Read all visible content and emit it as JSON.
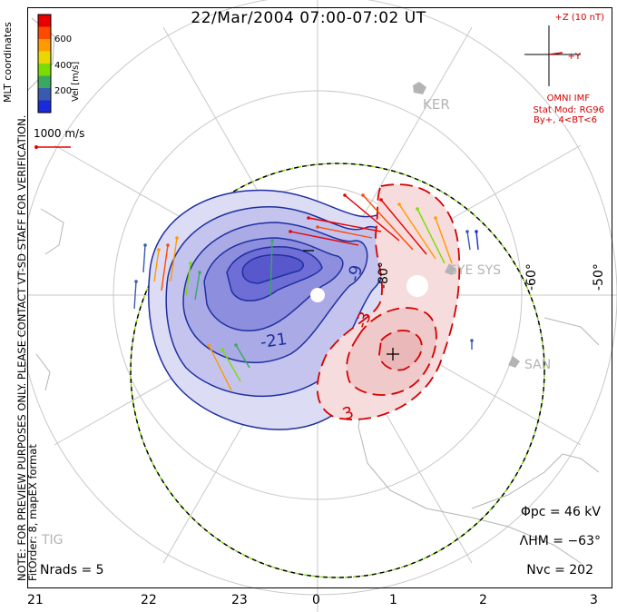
{
  "title": "22/Mar/2004 07:00-07:02 UT",
  "side_note_line1": "NOTE: FOR PREVIEW PURPOSES ONLY. PLEASE CONTACT VT-SD STAFF FOR VERIFICATION.",
  "side_note_line2": "FitOrder: 8, mapEX format",
  "coord_label": "MLT coordinates",
  "legend": {
    "title": "Vel [m/s]",
    "ticks": [
      "600",
      "400",
      "200"
    ],
    "colors": [
      "#e80000",
      "#ff4a00",
      "#ff9a00",
      "#e8d800",
      "#7cdc00",
      "#3aa860",
      "#3a5ab0",
      "#1a2ad8"
    ]
  },
  "vector_scale_label": "1000 m/s",
  "imf": {
    "z_label": "+Z (10 nT)",
    "y_label": "+Y",
    "source": "OMNI IMF",
    "model": "Stat Mod: RG96",
    "condition": "By+, 4<BT<6"
  },
  "stations": {
    "ker": "KER",
    "sye_sys": "SYE SYS",
    "san": "SAN",
    "tig": "TIG"
  },
  "latitude_labels": [
    "-80°",
    "-60°",
    "-50°"
  ],
  "contour_labels": [
    "-9",
    "-21",
    "3",
    "-3"
  ],
  "stats": {
    "phi_pc": "Φpc = 46 kV",
    "lambda_hm": "ΛHM = −63°",
    "n_vc": "Nvc = 202",
    "n_rads": "Nrads = 5"
  },
  "mlt_ticks": [
    "21",
    "22",
    "23",
    "0",
    "1",
    "2",
    "3"
  ]
}
